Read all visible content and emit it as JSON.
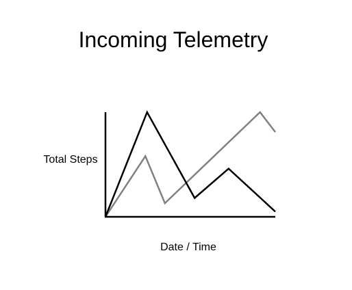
{
  "chart_data": {
    "type": "line",
    "title": "Incoming Telemetry",
    "xlabel": "Date / Time",
    "ylabel": "Total Steps",
    "x": [
      0,
      1,
      2,
      3,
      4,
      5,
      6,
      7,
      8,
      9,
      10
    ],
    "ylim": [
      0,
      100
    ],
    "grid": false,
    "legend": "none",
    "series": [
      {
        "color": "#000000",
        "points": [
          [
            0,
            0
          ],
          [
            2.45,
            100
          ],
          [
            5.25,
            18
          ],
          [
            7.25,
            46
          ],
          [
            10,
            5
          ]
        ]
      },
      {
        "color": "#808080",
        "points": [
          [
            0,
            0
          ],
          [
            2.35,
            58
          ],
          [
            3.5,
            13
          ],
          [
            9.1,
            100
          ],
          [
            10,
            81
          ]
        ]
      }
    ]
  }
}
